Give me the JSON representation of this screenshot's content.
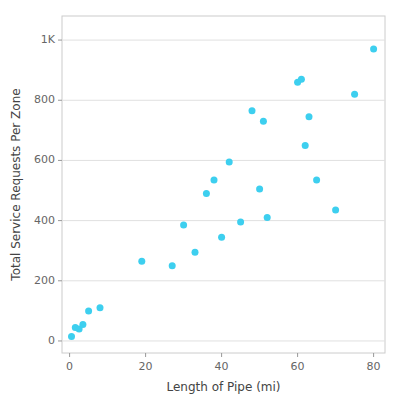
{
  "chart_data": {
    "type": "scatter",
    "xlabel": "Length of Pipe (mi)",
    "ylabel": "Total Service Requests Per Zone",
    "x": [
      0.5,
      1.5,
      2.5,
      3.5,
      5,
      8,
      19,
      27,
      30,
      33,
      36,
      38,
      40,
      42,
      45,
      48,
      50,
      51,
      52,
      60,
      61,
      62,
      63,
      65,
      70,
      75,
      80
    ],
    "values": [
      15,
      45,
      40,
      55,
      100,
      110,
      265,
      250,
      385,
      295,
      490,
      535,
      345,
      595,
      395,
      765,
      505,
      730,
      410,
      860,
      870,
      650,
      745,
      535,
      435,
      820,
      970
    ],
    "color": "#3DCFEF",
    "xlim": [
      -2,
      83
    ],
    "ylim": [
      -40,
      1080
    ],
    "xticks": [
      0,
      20,
      40,
      60,
      80
    ],
    "yticks": [
      0,
      200,
      400,
      600,
      800,
      {
        "value": 1000,
        "label": "1K"
      }
    ],
    "grid": true
  }
}
